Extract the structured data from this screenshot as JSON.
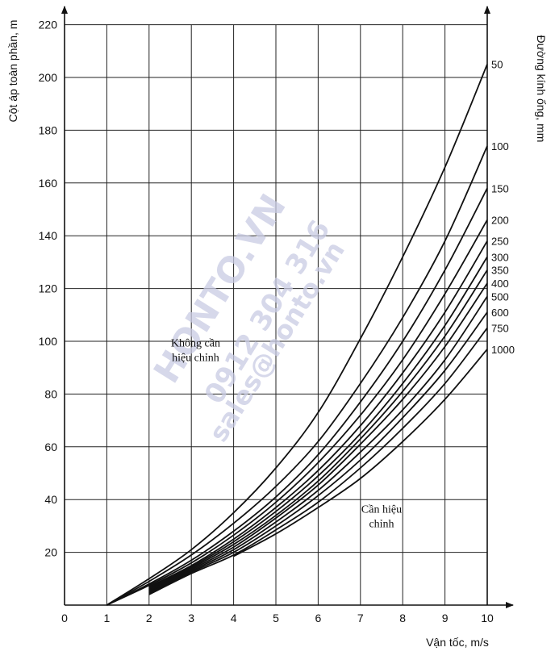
{
  "chart_data": {
    "type": "line",
    "xlabel": "Vận tốc, m/s",
    "ylabel": "Cột áp toàn phần, m",
    "y2label": "Đường kính ống, mm",
    "xlim": [
      0,
      10
    ],
    "ylim": [
      0,
      220
    ],
    "xticks": [
      0,
      1,
      2,
      3,
      4,
      5,
      6,
      7,
      8,
      9,
      10
    ],
    "yticks": [
      20,
      40,
      60,
      80,
      100,
      120,
      140,
      160,
      180,
      200,
      220
    ],
    "grid": true,
    "annotations": [
      {
        "lines": [
          "Không cần",
          "hiệu chỉnh"
        ],
        "x": 3.1,
        "y": 98
      },
      {
        "lines": [
          "Cần hiệu",
          "chỉnh"
        ],
        "x": 7.5,
        "y": 35
      }
    ],
    "series": [
      {
        "name": "50",
        "x": [
          1,
          2,
          3,
          4,
          5,
          6,
          7,
          8,
          9,
          10
        ],
        "values": [
          0,
          10,
          21,
          35,
          52,
          73,
          101,
          132,
          166,
          205
        ]
      },
      {
        "name": "100",
        "x": [
          1,
          2,
          3,
          4,
          5,
          6,
          7,
          8,
          9,
          10
        ],
        "values": [
          0,
          9,
          19,
          31,
          45,
          62,
          84,
          109,
          138,
          174
        ]
      },
      {
        "name": "150",
        "x": [
          1,
          2,
          3,
          4,
          5,
          6,
          7,
          8,
          9,
          10
        ],
        "values": [
          0,
          8,
          17,
          28,
          41,
          57,
          77,
          100,
          127,
          158
        ]
      },
      {
        "name": "200",
        "x": [
          1,
          2,
          3,
          4,
          5,
          6,
          7,
          8,
          9,
          10
        ],
        "values": [
          0,
          7.5,
          16,
          26.5,
          39,
          54,
          72,
          93,
          118,
          146
        ]
      },
      {
        "name": "250",
        "x": [
          2,
          3,
          4,
          5,
          6,
          7,
          8,
          9,
          10
        ],
        "values": [
          7,
          15,
          25,
          37,
          51,
          68,
          88,
          111,
          138
        ]
      },
      {
        "name": "300",
        "x": [
          2,
          3,
          4,
          5,
          6,
          7,
          8,
          9,
          10
        ],
        "values": [
          6.5,
          14.5,
          24,
          35.5,
          49,
          65,
          84,
          106,
          132
        ]
      },
      {
        "name": "350",
        "x": [
          2,
          3,
          4,
          5,
          6,
          7,
          8,
          9,
          10
        ],
        "values": [
          6,
          14,
          23,
          34,
          47,
          63,
          81,
          102,
          127
        ]
      },
      {
        "name": "400",
        "x": [
          2,
          3,
          4,
          5,
          6,
          7,
          8,
          9,
          10
        ],
        "values": [
          5.5,
          13.5,
          22,
          33,
          45.5,
          61,
          78,
          98,
          122
        ]
      },
      {
        "name": "500",
        "x": [
          2,
          3,
          4,
          5,
          6,
          7,
          8,
          9,
          10
        ],
        "values": [
          5,
          13,
          21,
          31.5,
          43.5,
          58,
          74,
          93,
          117
        ]
      },
      {
        "name": "600",
        "x": [
          2,
          3,
          4,
          5,
          6,
          7,
          8,
          9,
          10
        ],
        "values": [
          4.5,
          12.5,
          20,
          30,
          41.5,
          55,
          71,
          89,
          111
        ]
      },
      {
        "name": "750",
        "x": [
          2,
          3,
          4,
          5,
          6,
          7,
          8,
          9,
          10
        ],
        "values": [
          4,
          12,
          19,
          28.5,
          39,
          52,
          67,
          84,
          105
        ]
      },
      {
        "name": "1000",
        "x": [
          4,
          5,
          6,
          7,
          8,
          9,
          10
        ],
        "values": [
          18.5,
          27,
          37,
          48,
          62,
          78,
          97
        ]
      }
    ]
  },
  "series_labels": [
    "50",
    "100",
    "150",
    "200",
    "250",
    "300",
    "350",
    "400",
    "500",
    "600",
    "750",
    "1000"
  ],
  "watermark": {
    "brand": "HONTO.VN",
    "phone": "0912 304 316",
    "email": "sales@honto.vn"
  }
}
